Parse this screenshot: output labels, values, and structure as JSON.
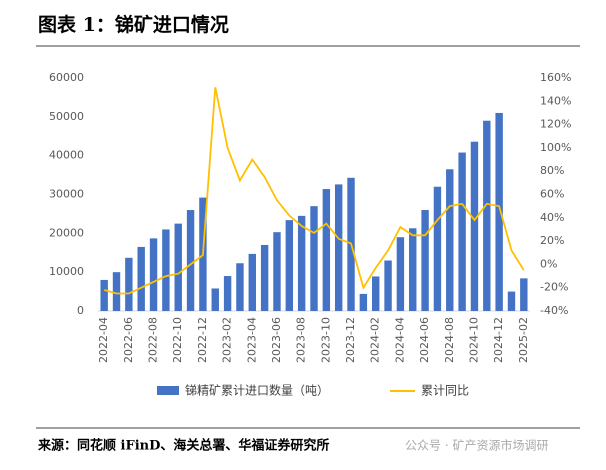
{
  "chart_data": {
    "type": "bar-line",
    "title": "图表 1：锑矿进口情况",
    "source": "来源：同花顺 iFinD、海关总署、华福证券研究所",
    "watermark": "公众号 · 矿产资源市场调研",
    "categories": [
      "2022-04",
      null,
      "2022-06",
      null,
      "2022-08",
      null,
      "2022-10",
      null,
      "2022-12",
      null,
      "2023-02",
      null,
      "2023-04",
      null,
      "2023-06",
      null,
      "2023-08",
      null,
      "2023-10",
      null,
      "2023-12",
      null,
      "2024-02",
      null,
      "2024-04",
      null,
      "2024-06",
      null,
      "2024-08",
      null,
      "2024-10",
      null,
      "2024-12",
      null,
      "2025-02"
    ],
    "series": [
      {
        "name": "锑精矿累计进口数量（吨）",
        "type": "bar",
        "color": "#4472c4",
        "values": [
          8000,
          10000,
          13700,
          16500,
          18700,
          21000,
          22500,
          26000,
          29200,
          5800,
          9000,
          12300,
          14700,
          17000,
          20300,
          23400,
          24500,
          27000,
          31400,
          32600,
          34300,
          4400,
          8900,
          13000,
          19000,
          21300,
          26000,
          32000,
          36500,
          40800,
          43600,
          49000,
          51000,
          5000,
          8400
        ]
      },
      {
        "name": "累计同比",
        "type": "line",
        "axis": "y2",
        "color": "#ffc000",
        "values": [
          -22,
          -25,
          -25,
          -20,
          -15,
          -10,
          -8,
          0,
          8,
          152,
          100,
          72,
          90,
          75,
          55,
          42,
          33,
          27,
          35,
          22,
          18,
          -20,
          -3,
          12,
          32,
          25,
          25,
          38,
          50,
          52,
          38,
          52,
          50,
          12,
          -5
        ]
      }
    ],
    "ylim": [
      0,
      60000
    ],
    "yticks": [
      0,
      10000,
      20000,
      30000,
      40000,
      50000,
      60000
    ],
    "y2lim": [
      -40,
      160
    ],
    "y2ticks": [
      {
        "value": -40,
        "label": "-40%"
      },
      {
        "value": -20,
        "label": "-20%"
      },
      {
        "value": 0,
        "label": "0%"
      },
      {
        "value": 20,
        "label": "20%"
      },
      {
        "value": 40,
        "label": "40%"
      },
      {
        "value": 60,
        "label": "60%"
      },
      {
        "value": 80,
        "label": "80%"
      },
      {
        "value": 100,
        "label": "100%"
      },
      {
        "value": 120,
        "label": "120%"
      },
      {
        "value": 140,
        "label": "140%"
      },
      {
        "value": 160,
        "label": "160%"
      }
    ],
    "grid": false
  }
}
